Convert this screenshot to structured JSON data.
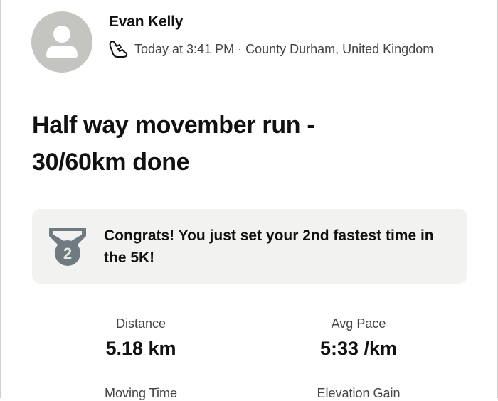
{
  "post": {
    "author": "Evan Kelly",
    "activity_icon": "running-shoe-icon",
    "meta": "Today at 3:41 PM · County Durham, United Kingdom",
    "title": "Half way movember run - 30/60km done"
  },
  "achievement": {
    "icon": "silver-medal-icon",
    "rank": "2",
    "text": "Congrats! You just set your 2nd fastest time in the 5K!"
  },
  "stats": [
    {
      "label": "Distance",
      "value": "5.18 km"
    },
    {
      "label": "Avg Pace",
      "value": "5:33 /km"
    },
    {
      "label": "Moving Time",
      "value": ""
    },
    {
      "label": "Elevation Gain",
      "value": ""
    }
  ],
  "colors": {
    "avatar_bg": "#c4c4c0",
    "banner_bg": "#f2f2f1",
    "medal": "#6f7b81"
  }
}
